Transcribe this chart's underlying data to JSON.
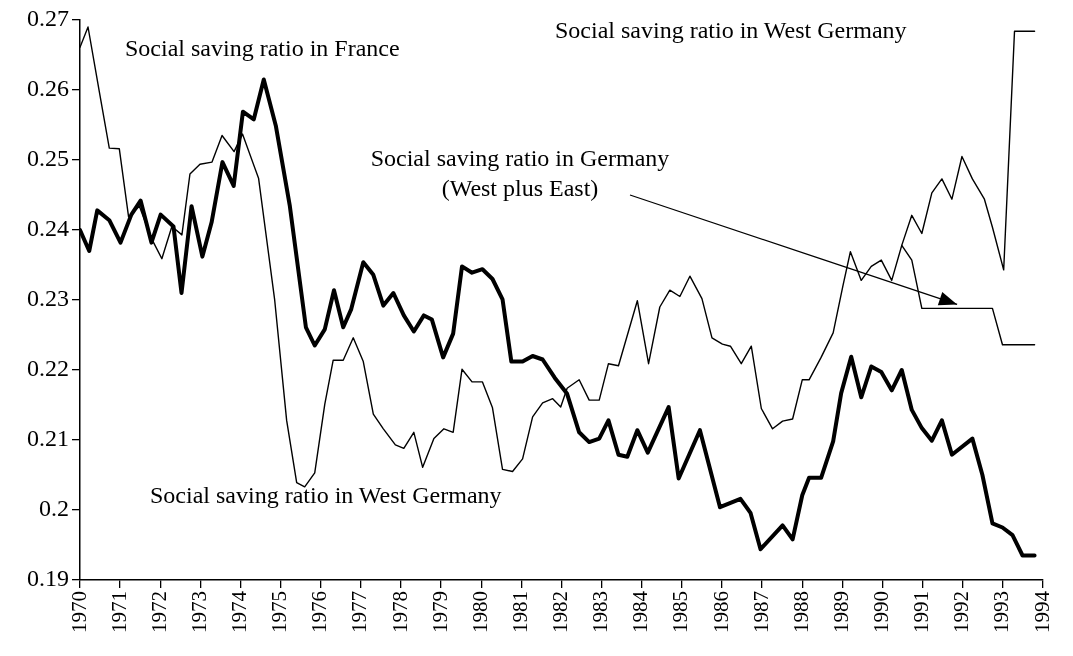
{
  "chart_data": {
    "type": "line",
    "xlim": [
      1970,
      1994
    ],
    "xticks": [
      1970,
      1971,
      1972,
      1973,
      1974,
      1975,
      1976,
      1977,
      1978,
      1979,
      1980,
      1981,
      1982,
      1983,
      1984,
      1985,
      1986,
      1987,
      1988,
      1989,
      1990,
      1991,
      1992,
      1993,
      1994
    ],
    "ylim": [
      0.19,
      0.27
    ],
    "yticks": [
      0.19,
      0.2,
      0.21,
      0.22,
      0.23,
      0.24,
      0.25,
      0.26,
      0.27
    ],
    "marker": "none",
    "line_style": "solid",
    "legend": false,
    "annotations": [
      "Social saving ratio in West Germany"
    ],
    "series": [
      {
        "name": "Social saving ratio in France",
        "color": "#000000",
        "x": [
          1970.0,
          1970.23,
          1970.43,
          1970.73,
          1971.01,
          1971.28,
          1971.51,
          1971.78,
          1972.01,
          1972.33,
          1972.53,
          1972.78,
          1973.05,
          1973.28,
          1973.55,
          1973.83,
          1974.06,
          1974.33,
          1974.58,
          1974.88,
          1975.23,
          1975.63,
          1975.85,
          1976.1,
          1976.33,
          1976.56,
          1976.76,
          1977.06,
          1977.31,
          1977.56,
          1977.81,
          1978.07,
          1978.32,
          1978.57,
          1978.77,
          1979.05,
          1979.3,
          1979.52,
          1979.77,
          1980.03,
          1980.28,
          1980.53,
          1980.75,
          1981.03,
          1981.28,
          1981.53,
          1981.83,
          1982.14,
          1982.44,
          1982.69,
          1982.94,
          1983.17,
          1983.42,
          1983.64,
          1983.89,
          1984.15,
          1984.67,
          1984.92,
          1985.45,
          1985.95,
          1986.46,
          1986.71,
          1986.96,
          1987.51,
          1987.76,
          1988.0,
          1988.17,
          1988.47,
          1988.77,
          1988.97,
          1989.22,
          1989.47,
          1989.72,
          1989.97,
          1990.23,
          1990.48,
          1990.73,
          1990.98,
          1991.23,
          1991.48,
          1991.73,
          1992.24,
          1992.49,
          1992.74,
          1992.99,
          1993.24,
          1993.49,
          1993.79
        ],
        "values": [
          0.24,
          0.237,
          0.2428,
          0.2414,
          0.2382,
          0.2422,
          0.2442,
          0.2382,
          0.2422,
          0.2405,
          0.231,
          0.2434,
          0.2362,
          0.2411,
          0.2497,
          0.2463,
          0.2569,
          0.2558,
          0.2615,
          0.2549,
          0.2434,
          0.2261,
          0.2235,
          0.2258,
          0.2314,
          0.2261,
          0.2287,
          0.2354,
          0.2336,
          0.2292,
          0.231,
          0.2278,
          0.2255,
          0.2278,
          0.2272,
          0.2218,
          0.2252,
          0.2348,
          0.2339,
          0.2344,
          0.233,
          0.2301,
          0.2212,
          0.2212,
          0.222,
          0.2215,
          0.2189,
          0.2166,
          0.2111,
          0.2097,
          0.2102,
          0.2128,
          0.2079,
          0.2076,
          0.2114,
          0.2082,
          0.2147,
          0.2045,
          0.2114,
          0.2004,
          0.2016,
          0.1996,
          0.1944,
          0.1978,
          0.1958,
          0.2021,
          0.2046,
          0.2046,
          0.2098,
          0.2167,
          0.2219,
          0.2161,
          0.2205,
          0.2197,
          0.2171,
          0.22,
          0.2143,
          0.2117,
          0.2099,
          0.2128,
          0.2079,
          0.2102,
          0.205,
          0.1981,
          0.1975,
          0.1964,
          0.1935,
          0.1935
        ]
      },
      {
        "name": "Social saving ratio in West Germany",
        "color": "#000000",
        "x": [
          1970.0,
          1970.2,
          1970.48,
          1970.73,
          1970.98,
          1971.21,
          1971.48,
          1971.78,
          1972.04,
          1972.29,
          1972.54,
          1972.74,
          1972.99,
          1973.29,
          1973.54,
          1973.84,
          1974.05,
          1974.45,
          1974.85,
          1975.15,
          1975.4,
          1975.6,
          1975.85,
          1976.1,
          1976.31,
          1976.56,
          1976.81,
          1977.06,
          1977.31,
          1977.56,
          1977.86,
          1978.07,
          1978.32,
          1978.54,
          1978.82,
          1979.07,
          1979.3,
          1979.52,
          1979.77,
          1980.03,
          1980.28,
          1980.53,
          1980.78,
          1981.03,
          1981.28,
          1981.53,
          1981.78,
          1981.98,
          1982.14,
          1982.44,
          1982.69,
          1982.94,
          1983.17,
          1983.42,
          1983.89,
          1984.17,
          1984.45,
          1984.7,
          1984.95,
          1985.2,
          1985.5,
          1985.75,
          1986.01,
          1986.21,
          1986.48,
          1986.73,
          1986.98,
          1987.26,
          1987.51,
          1987.76,
          1988.0,
          1988.17,
          1988.47,
          1988.77,
          1989.02,
          1989.2,
          1989.47,
          1989.72,
          1989.97,
          1990.23,
          1990.48,
          1990.73,
          1990.98,
          1991.23,
          1991.48,
          1991.73,
          1991.98,
          1992.24,
          1992.54,
          1992.74,
          1993.02,
          1993.29,
          1993.79
        ],
        "values": [
          0.2661,
          0.269,
          0.2598,
          0.2517,
          0.2516,
          0.2419,
          0.2434,
          0.2388,
          0.2359,
          0.2405,
          0.2393,
          0.248,
          0.2494,
          0.2497,
          0.2535,
          0.2512,
          0.2537,
          0.2474,
          0.2301,
          0.2128,
          0.2039,
          0.2033,
          0.2053,
          0.2151,
          0.2214,
          0.2214,
          0.2246,
          0.2212,
          0.2137,
          0.2116,
          0.2093,
          0.2088,
          0.2111,
          0.2061,
          0.2102,
          0.2116,
          0.2111,
          0.2201,
          0.2183,
          0.2183,
          0.2146,
          0.2058,
          0.2055,
          0.2073,
          0.2133,
          0.2153,
          0.2159,
          0.2147,
          0.2174,
          0.2186,
          0.2157,
          0.2157,
          0.2209,
          0.2206,
          0.2299,
          0.2209,
          0.229,
          0.2314,
          0.2305,
          0.2334,
          0.2302,
          0.2246,
          0.2237,
          0.2234,
          0.2209,
          0.2234,
          0.2145,
          0.2116,
          0.2127,
          0.213,
          0.2186,
          0.2186,
          0.2218,
          0.2253,
          0.2322,
          0.2369,
          0.2328,
          0.2348,
          0.2357,
          0.2328,
          0.2378,
          0.2421,
          0.2395,
          0.2453,
          0.2473,
          0.2444,
          0.2505,
          0.2473,
          0.2444,
          0.2404,
          0.2343,
          0.2684,
          0.2684
        ]
      },
      {
        "name": "Social saving ratio in Germany\n(West plus East)",
        "color": "#000000",
        "x": [
          1990.48,
          1990.73,
          1990.98,
          1992.74,
          1992.99,
          1993.79
        ],
        "values": [
          0.2378,
          0.2357,
          0.2288,
          0.2288,
          0.2236,
          0.2236
        ]
      }
    ]
  }
}
